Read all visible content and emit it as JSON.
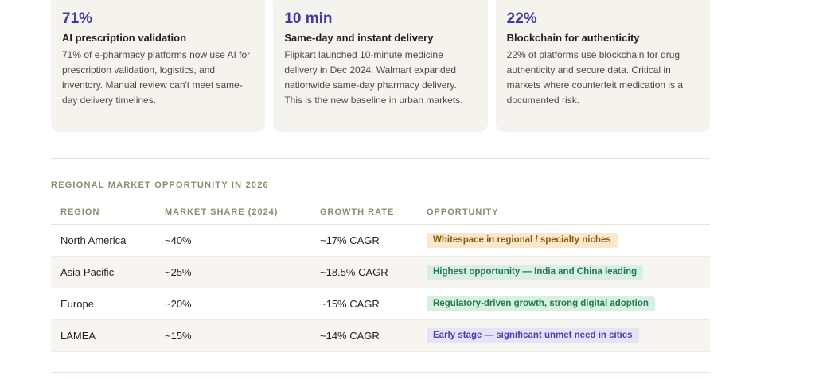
{
  "cards": [
    {
      "stat": "71%",
      "title": "AI prescription validation",
      "desc": "71% of e-pharmacy platforms now use AI for prescription validation, logistics, and inventory. Manual review can't meet same-day delivery timelines."
    },
    {
      "stat": "10 min",
      "title": "Same-day and instant delivery",
      "desc": "Flipkart launched 10-minute medicine delivery in Dec 2024. Walmart expanded nationwide same-day pharmacy delivery. This is the new baseline in urban markets."
    },
    {
      "stat": "22%",
      "title": "Blockchain for authenticity",
      "desc": "22% of platforms use blockchain for drug authenticity and secure data. Critical in markets where counterfeit medication is a documented risk."
    }
  ],
  "section_label": "REGIONAL MARKET OPPORTUNITY IN 2026",
  "table": {
    "headers": [
      "REGION",
      "MARKET SHARE (2024)",
      "GROWTH RATE",
      "OPPORTUNITY"
    ],
    "rows": [
      {
        "region": "North America",
        "share": "~40%",
        "growth": "~17% CAGR",
        "opportunity": "Whitespace in regional / specialty niches",
        "badge_bg": "#fbe8c8",
        "badge_fg": "#8a5a12"
      },
      {
        "region": "Asia Pacific",
        "share": "~25%",
        "growth": "~18.5% CAGR",
        "opportunity": "Highest opportunity — India and China leading",
        "badge_bg": "#d7f0e3",
        "badge_fg": "#1f7a4d"
      },
      {
        "region": "Europe",
        "share": "~20%",
        "growth": "~15% CAGR",
        "opportunity": "Regulatory-driven growth, strong digital adoption",
        "badge_bg": "#d7f0e3",
        "badge_fg": "#1f7a4d"
      },
      {
        "region": "LAMEA",
        "share": "~15%",
        "growth": "~14% CAGR",
        "opportunity": "Early stage — significant unmet need in cities",
        "badge_bg": "#e6e3f8",
        "badge_fg": "#4a3fb0"
      }
    ]
  },
  "colors": {
    "accent": "#4338a8",
    "card_bg": "#f4f3ee",
    "label": "#8a8c70"
  }
}
